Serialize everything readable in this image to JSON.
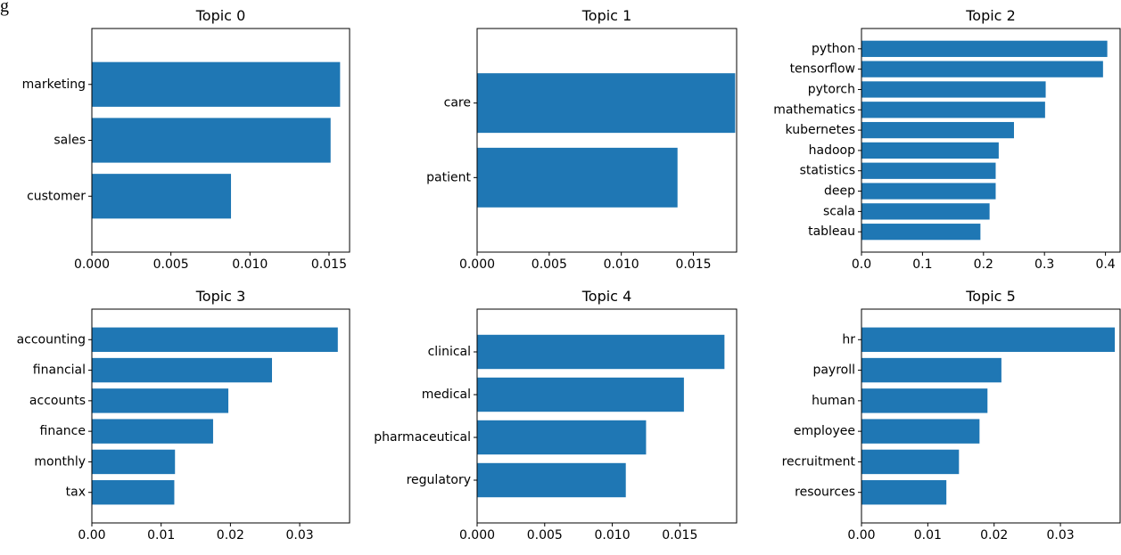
{
  "page": {
    "edge_text": "g"
  },
  "colors": {
    "bar": "#1f77b4",
    "axis": "#000000",
    "text": "#000000",
    "background": "#ffffff"
  },
  "chart_data": [
    {
      "type": "bar",
      "orientation": "horizontal",
      "title": "Topic 0",
      "categories": [
        "marketing",
        "sales",
        "customer"
      ],
      "values": [
        0.0157,
        0.0151,
        0.0088
      ],
      "xlim": [
        0,
        0.0163
      ],
      "xticks": [
        "0.000",
        "0.005",
        "0.010",
        "0.015"
      ],
      "xtick_values": [
        0,
        0.005,
        0.01,
        0.015
      ],
      "xlabel": "",
      "ylabel": "",
      "grid": false
    },
    {
      "type": "bar",
      "orientation": "horizontal",
      "title": "Topic 1",
      "categories": [
        "care",
        "patient"
      ],
      "values": [
        0.0179,
        0.0139
      ],
      "xlim": [
        0,
        0.018
      ],
      "xticks": [
        "0.000",
        "0.005",
        "0.010",
        "0.015"
      ],
      "xtick_values": [
        0,
        0.005,
        0.01,
        0.015
      ],
      "xlabel": "",
      "ylabel": "",
      "grid": false
    },
    {
      "type": "bar",
      "orientation": "horizontal",
      "title": "Topic 2",
      "categories": [
        "python",
        "tensorflow",
        "pytorch",
        "mathematics",
        "kubernetes",
        "hadoop",
        "statistics",
        "deep",
        "scala",
        "tableau"
      ],
      "values": [
        0.403,
        0.396,
        0.302,
        0.301,
        0.25,
        0.225,
        0.22,
        0.22,
        0.21,
        0.195
      ],
      "xlim": [
        0,
        0.424
      ],
      "xticks": [
        "0.0",
        "0.1",
        "0.2",
        "0.3",
        "0.4"
      ],
      "xtick_values": [
        0,
        0.1,
        0.2,
        0.3,
        0.4
      ],
      "xlabel": "",
      "ylabel": "",
      "grid": false
    },
    {
      "type": "bar",
      "orientation": "horizontal",
      "title": "Topic 3",
      "categories": [
        "accounting",
        "financial",
        "accounts",
        "finance",
        "monthly",
        "tax"
      ],
      "values": [
        0.0355,
        0.026,
        0.0197,
        0.0175,
        0.012,
        0.0119
      ],
      "xlim": [
        0,
        0.0372
      ],
      "xticks": [
        "0.00",
        "0.01",
        "0.02",
        "0.03"
      ],
      "xtick_values": [
        0,
        0.01,
        0.02,
        0.03
      ],
      "xlabel": "",
      "ylabel": "",
      "grid": false
    },
    {
      "type": "bar",
      "orientation": "horizontal",
      "title": "Topic 4",
      "categories": [
        "clinical",
        "medical",
        "pharmaceutical",
        "regulatory"
      ],
      "values": [
        0.0183,
        0.0153,
        0.0125,
        0.011
      ],
      "xlim": [
        0,
        0.0192
      ],
      "xticks": [
        "0.000",
        "0.005",
        "0.010",
        "0.015"
      ],
      "xtick_values": [
        0,
        0.005,
        0.01,
        0.015
      ],
      "xlabel": "",
      "ylabel": "",
      "grid": false
    },
    {
      "type": "bar",
      "orientation": "horizontal",
      "title": "Topic 5",
      "categories": [
        "hr",
        "payroll",
        "human",
        "employee",
        "recruitment",
        "resources"
      ],
      "values": [
        0.0382,
        0.0211,
        0.019,
        0.0178,
        0.0147,
        0.0128
      ],
      "xlim": [
        0,
        0.039
      ],
      "xticks": [
        "0.00",
        "0.01",
        "0.02",
        "0.03"
      ],
      "xtick_values": [
        0,
        0.01,
        0.02,
        0.03
      ],
      "xlabel": "",
      "ylabel": "",
      "grid": false
    }
  ]
}
